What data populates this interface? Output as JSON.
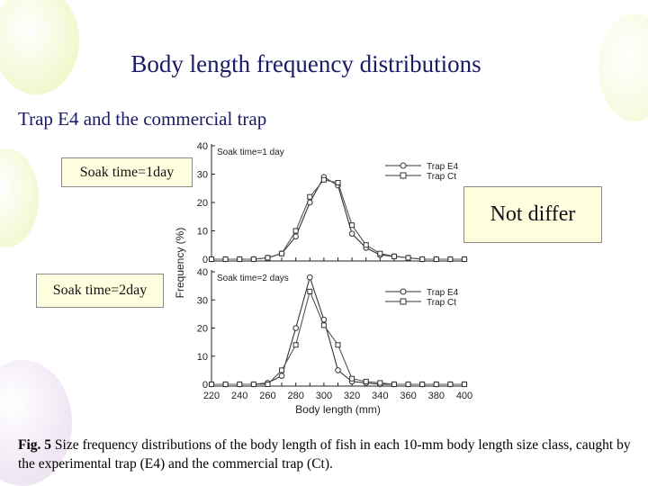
{
  "title": "Body length frequency distributions",
  "subtitle": "Trap E4 and the commercial trap",
  "callouts": {
    "soak1": "Soak time=1day",
    "soak2": "Soak time=2day",
    "not_differ": "Not differ"
  },
  "caption": {
    "label": "Fig. 5",
    "text": " Size frequency distributions of the body length of fish in each 10-mm body length size class, caught by the experimental trap (E4) and the commercial trap (Ct)."
  },
  "chart_data": [
    {
      "type": "line",
      "title": "Soak time=1 day",
      "xlabel": "Body length (mm)",
      "ylabel": "Frequency (%)",
      "x": [
        220,
        230,
        240,
        250,
        260,
        270,
        280,
        290,
        300,
        310,
        320,
        330,
        340,
        350,
        360,
        370,
        380,
        390,
        400
      ],
      "xlim": [
        220,
        400
      ],
      "ylim": [
        0,
        40
      ],
      "yticks": [
        0,
        10,
        20,
        30,
        40
      ],
      "series": [
        {
          "name": "Trap E4",
          "marker": "circle",
          "values": [
            0,
            0,
            0,
            0,
            0.5,
            2,
            8,
            20,
            29,
            26,
            9,
            4,
            1.5,
            1,
            0.5,
            0,
            0,
            0,
            0
          ]
        },
        {
          "name": "Trap Ct",
          "marker": "square",
          "values": [
            0,
            0,
            0,
            0,
            0.5,
            2,
            10,
            22,
            28,
            27,
            12,
            5,
            2,
            1,
            0.5,
            0,
            0,
            0,
            0
          ]
        }
      ]
    },
    {
      "type": "line",
      "title": "Soak time=2 days",
      "xlabel": "Body length (mm)",
      "ylabel": "Frequency (%)",
      "x": [
        220,
        230,
        240,
        250,
        260,
        270,
        280,
        290,
        300,
        310,
        320,
        330,
        340,
        350,
        360,
        370,
        380,
        390,
        400
      ],
      "xticks": [
        220,
        240,
        260,
        280,
        300,
        320,
        340,
        360,
        380,
        400
      ],
      "xlim": [
        220,
        400
      ],
      "ylim": [
        0,
        40
      ],
      "yticks": [
        0,
        10,
        20,
        30,
        40
      ],
      "series": [
        {
          "name": "Trap E4",
          "marker": "circle",
          "values": [
            0,
            0,
            0,
            0,
            0.5,
            3,
            20,
            38,
            23,
            5,
            1,
            0.5,
            0,
            0,
            0,
            0,
            0,
            0,
            0
          ]
        },
        {
          "name": "Trap Ct",
          "marker": "square",
          "values": [
            0,
            0,
            0,
            0,
            0,
            5,
            14,
            33,
            21,
            14,
            2,
            1,
            0.5,
            0,
            0,
            0,
            0,
            0,
            0
          ]
        }
      ]
    }
  ]
}
